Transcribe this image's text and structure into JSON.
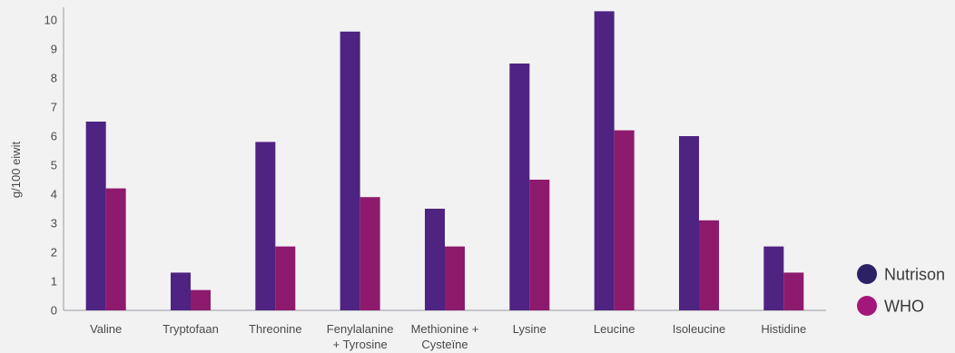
{
  "chart_data": {
    "type": "bar",
    "title": "",
    "xlabel": "",
    "ylabel": "g/100 eiwit",
    "ylim": [
      0,
      10
    ],
    "yticks": [
      0,
      1,
      2,
      3,
      4,
      5,
      6,
      7,
      8,
      9,
      10
    ],
    "grid": false,
    "legend_position": "bottom-right",
    "categories": [
      [
        "Valine"
      ],
      [
        "Tryptofaan"
      ],
      [
        "Threonine"
      ],
      [
        "Fenylalanine",
        "+ Tyrosine"
      ],
      [
        "Methionine +",
        "Cysteïne"
      ],
      [
        "Lysine"
      ],
      [
        "Leucine"
      ],
      [
        "Isoleucine"
      ],
      [
        "Histidine"
      ]
    ],
    "series": [
      {
        "name": "Nutrison",
        "color": "#4e2381",
        "values": [
          6.5,
          1.3,
          5.8,
          9.6,
          3.5,
          8.5,
          10.3,
          6.0,
          2.2
        ]
      },
      {
        "name": "WHO",
        "color": "#8e1a6e",
        "values": [
          4.2,
          0.7,
          2.2,
          3.9,
          2.2,
          4.5,
          6.2,
          3.1,
          1.3
        ]
      }
    ],
    "legend_markers": {
      "Nutrison": "#2d2166",
      "WHO": "#a4177a"
    }
  }
}
